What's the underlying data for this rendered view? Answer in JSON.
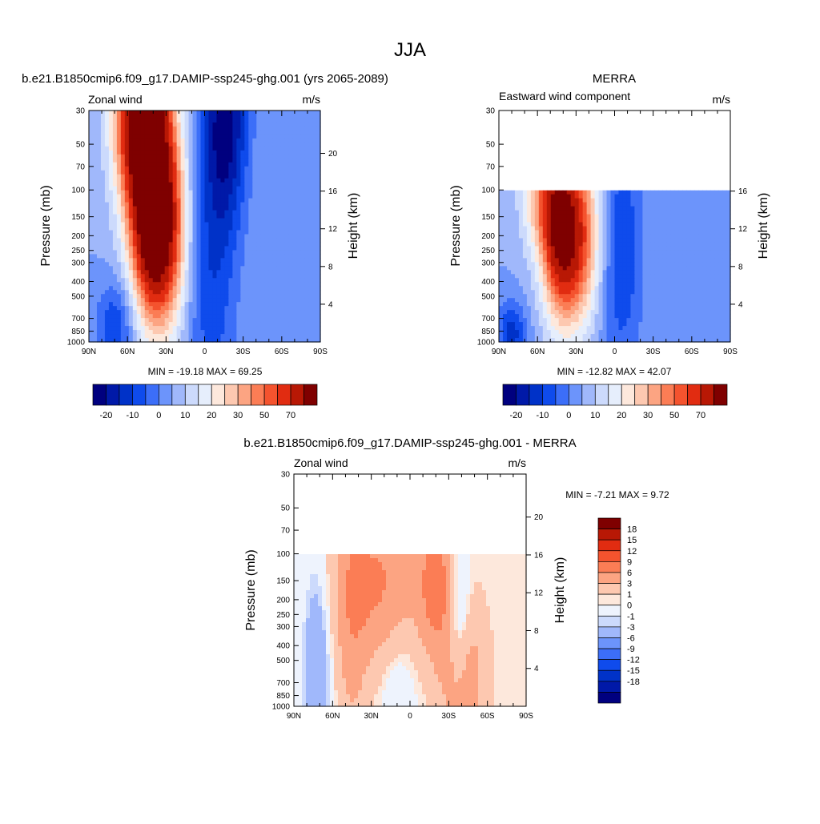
{
  "page": {
    "title": "JJA"
  },
  "colors": {
    "levels17": [
      "#00007f",
      "#0019a8",
      "#0032c8",
      "#0f4bec",
      "#3c6ef8",
      "#6c94fb",
      "#a0b8fb",
      "#ccdafc",
      "#e6eefc",
      "#fde8dc",
      "#fdc8b0",
      "#fca482",
      "#fb7d55",
      "#f4532e",
      "#e12c11",
      "#b81805",
      "#7f0000"
    ],
    "levels_diff": [
      "#00007f",
      "#0019a8",
      "#0032c8",
      "#0f4bec",
      "#3c6ef8",
      "#6c94fb",
      "#a0b8fb",
      "#ccdafc",
      "#eef3fd",
      "#fde8dc",
      "#fdc8b0",
      "#fca482",
      "#fb7d55",
      "#f4532e",
      "#e12c11",
      "#b81805",
      "#7f0000"
    ]
  },
  "chart_data": [
    {
      "type": "heatmap",
      "panel": "model",
      "title": "b.e21.B1850cmip6.f09_g17.DAMIP-ssp245-ghg.001 (yrs 2065-2089)",
      "left_label": "Zonal wind",
      "right_label": "m/s",
      "xlabel": "",
      "ylabel": "Pressure (mb)",
      "ylabel_right": "Height (km)",
      "x_ticks": [
        "90N",
        "60N",
        "30N",
        "0",
        "30S",
        "60S",
        "90S"
      ],
      "y_ticks": [
        "30",
        "50",
        "70",
        "100",
        "150",
        "200",
        "250",
        "300",
        "400",
        "500",
        "700",
        "850",
        "1000"
      ],
      "height_ticks": [
        "20",
        "16",
        "12",
        "8",
        "4"
      ],
      "ylim": [
        1000,
        30
      ],
      "min_max_text": "MIN = -19.18  MAX =  69.25",
      "colorbar_labels": [
        "-20",
        "-10",
        "0",
        "10",
        "20",
        "30",
        "50",
        "70"
      ],
      "fields": [
        {
          "lat": 44,
          "logp": 2.3,
          "wlat": 10,
          "wp": 0.35,
          "amp": 17
        },
        {
          "lat": 34,
          "logp": 2.25,
          "wlat": 13,
          "wp": 0.45,
          "amp": 48
        },
        {
          "lat": 48,
          "logp": 1.5,
          "wlat": 14,
          "wp": 0.45,
          "amp": 65
        },
        {
          "lat": -17,
          "logp": 1.5,
          "wlat": 12,
          "wp": 0.5,
          "amp": -20
        },
        {
          "lat": -5,
          "logp": 2.5,
          "wlat": 14,
          "wp": 0.8,
          "amp": -11
        },
        {
          "lat": 70,
          "logp": 2.9,
          "wlat": 10,
          "wp": 0.2,
          "amp": -12
        }
      ],
      "base": -2,
      "valid_min_pressure": 30
    },
    {
      "type": "heatmap",
      "panel": "obs",
      "title": "MERRA",
      "left_label": "Eastward wind component",
      "right_label": "m/s",
      "xlabel": "",
      "ylabel": "Pressure (mb)",
      "ylabel_right": "Height (km)",
      "x_ticks": [
        "90N",
        "60N",
        "30N",
        "0",
        "30S",
        "60S",
        "90S"
      ],
      "y_ticks": [
        "30",
        "50",
        "70",
        "100",
        "150",
        "200",
        "250",
        "300",
        "400",
        "500",
        "700",
        "850",
        "1000"
      ],
      "height_ticks": [
        "16",
        "12",
        "8",
        "4"
      ],
      "ylim": [
        1000,
        30
      ],
      "min_max_text": "MIN = -12.82  MAX =  42.07",
      "colorbar_labels": [
        "-20",
        "-10",
        "0",
        "10",
        "20",
        "30",
        "50",
        "70"
      ],
      "fields": [
        {
          "lat": 44,
          "logp": 2.3,
          "wlat": 9,
          "wp": 0.35,
          "amp": 19
        },
        {
          "lat": 33,
          "logp": 2.3,
          "wlat": 14,
          "wp": 0.4,
          "amp": 40
        },
        {
          "lat": 55,
          "logp": 2.05,
          "wlat": 12,
          "wp": 0.25,
          "amp": 18
        },
        {
          "lat": -5,
          "logp": 2.4,
          "wlat": 12,
          "wp": 0.6,
          "amp": -12
        },
        {
          "lat": 80,
          "logp": 2.95,
          "wlat": 8,
          "wp": 0.15,
          "amp": -14
        }
      ],
      "base": -2,
      "valid_min_pressure": 100
    },
    {
      "type": "heatmap",
      "panel": "difference",
      "title": "b.e21.B1850cmip6.f09_g17.DAMIP-ssp245-ghg.001 - MERRA",
      "left_label": "Zonal wind",
      "right_label": "m/s",
      "xlabel": "",
      "ylabel": "Pressure (mb)",
      "ylabel_right": "Height (km)",
      "x_ticks": [
        "90N",
        "60N",
        "30N",
        "0",
        "30S",
        "60S",
        "90S"
      ],
      "y_ticks": [
        "30",
        "50",
        "70",
        "100",
        "150",
        "200",
        "250",
        "300",
        "400",
        "500",
        "700",
        "850",
        "1000"
      ],
      "height_ticks": [
        "20",
        "16",
        "12",
        "8",
        "4"
      ],
      "ylim": [
        1000,
        30
      ],
      "min_max_text": "MIN =  -7.21  MAX =   9.72",
      "colorbar_labels": [
        "18",
        "15",
        "12",
        "9",
        "6",
        "3",
        "1",
        "0",
        "-1",
        "-3",
        "-6",
        "-9",
        "-12",
        "-15",
        "-18"
      ],
      "fields": [
        {
          "lat": 25,
          "logp": 2.2,
          "wlat": 22,
          "wp": 0.35,
          "amp": 6
        },
        {
          "lat": 45,
          "logp": 2.5,
          "wlat": 8,
          "wp": 0.6,
          "amp": 3
        },
        {
          "lat": -20,
          "logp": 2.2,
          "wlat": 9,
          "wp": 0.3,
          "amp": 7
        },
        {
          "lat": -40,
          "logp": 2.8,
          "wlat": 12,
          "wp": 0.35,
          "amp": 5
        },
        {
          "lat": 72,
          "logp": 2.7,
          "wlat": 8,
          "wp": 0.5,
          "amp": -3
        },
        {
          "lat": -38,
          "logp": 2.5,
          "wlat": 6,
          "wp": 0.35,
          "amp": -4
        },
        {
          "lat": 10,
          "logp": 2.75,
          "wlat": 10,
          "wp": 0.35,
          "amp": -1.5
        }
      ],
      "base": 0.5,
      "valid_min_pressure": 100
    }
  ]
}
